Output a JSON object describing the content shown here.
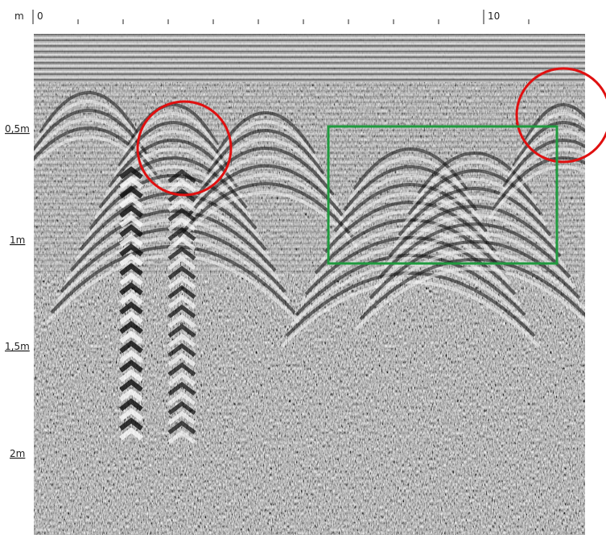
{
  "top_axis": {
    "unit": "m",
    "labels": [
      "0",
      "10"
    ]
  },
  "left_axis": {
    "labels": [
      "0,5m",
      "1m",
      "1,5m",
      "2m"
    ]
  }
}
